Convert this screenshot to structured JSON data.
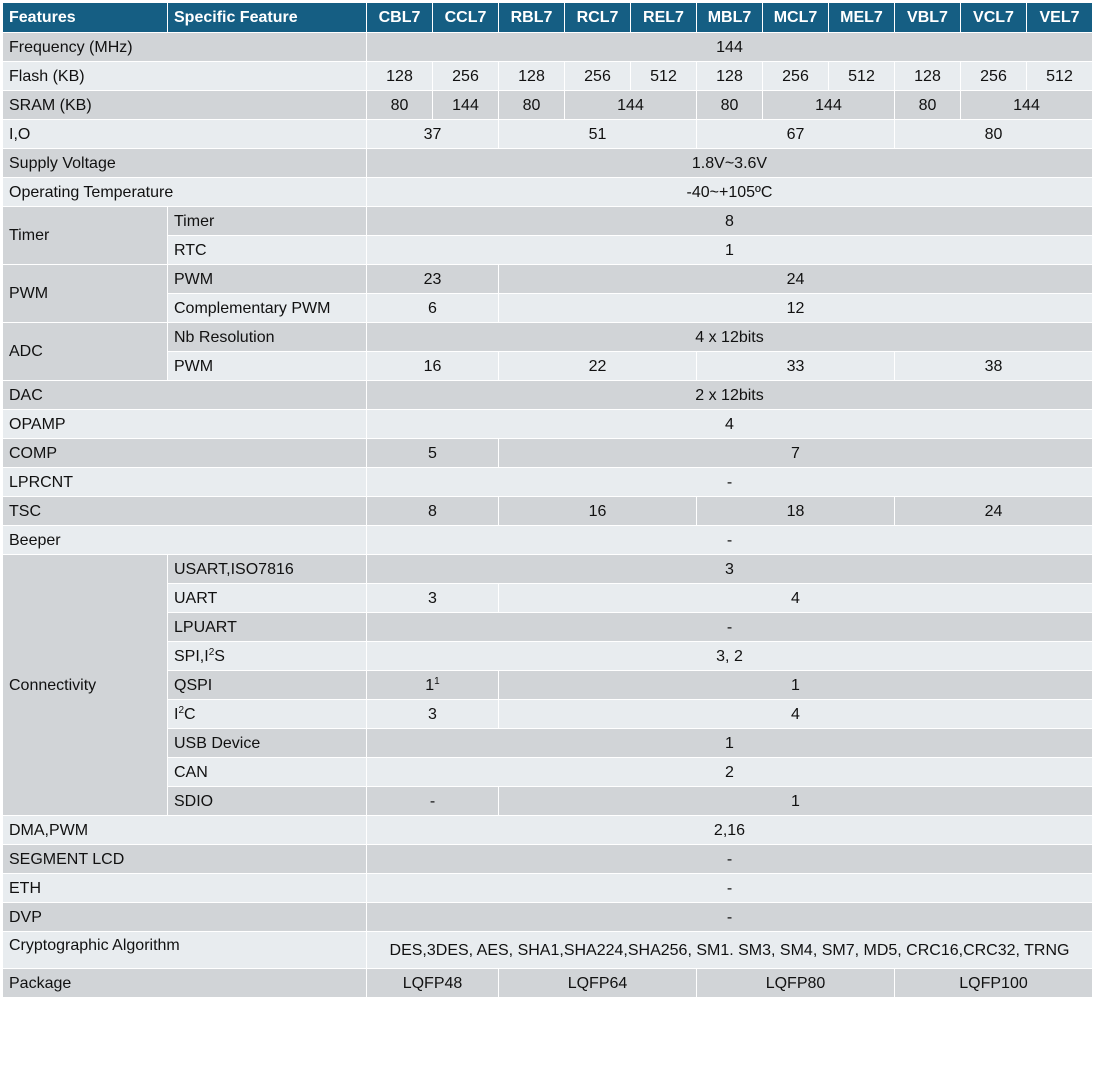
{
  "header": {
    "features": "Features",
    "specific": "Specific Feature",
    "models": [
      "CBL7",
      "CCL7",
      "RBL7",
      "RCL7",
      "REL7",
      "MBL7",
      "MCL7",
      "MEL7",
      "VBL7",
      "VCL7",
      "VEL7"
    ]
  },
  "rows": {
    "frequency": {
      "label": "Frequency (MHz)",
      "value": "144"
    },
    "flash": {
      "label": "Flash (KB)",
      "values": [
        "128",
        "256",
        "128",
        "256",
        "512",
        "128",
        "256",
        "512",
        "128",
        "256",
        "512"
      ]
    },
    "sram": {
      "label": "SRAM (KB)",
      "values": [
        "80",
        "144",
        "80",
        "144",
        "80",
        "144",
        "80",
        "144"
      ]
    },
    "io": {
      "label": "I,O",
      "values": [
        "37",
        "51",
        "67",
        "80"
      ]
    },
    "supply": {
      "label": "Supply Voltage",
      "value": "1.8V~3.6V"
    },
    "temp": {
      "label": "Operating Temperature",
      "value": "-40~+105ºC"
    },
    "timer": {
      "group": "Timer",
      "timer": {
        "label": "Timer",
        "value": "8"
      },
      "rtc": {
        "label": "RTC",
        "value": "1"
      }
    },
    "pwm": {
      "group": "PWM",
      "pwm": {
        "label": "PWM",
        "values": [
          "23",
          "24"
        ]
      },
      "comp_pwm": {
        "label": "Complementary PWM",
        "values": [
          "6",
          "12"
        ]
      }
    },
    "adc": {
      "group": "ADC",
      "nb": {
        "label": "Nb Resolution",
        "value": "4 x 12bits"
      },
      "pwm": {
        "label": "PWM",
        "values": [
          "16",
          "22",
          "33",
          "38"
        ]
      }
    },
    "dac": {
      "label": "DAC",
      "value": "2 x 12bits"
    },
    "opamp": {
      "label": "OPAMP",
      "value": "4"
    },
    "comp": {
      "label": "COMP",
      "values": [
        "5",
        "7"
      ]
    },
    "lprcnt": {
      "label": "LPRCNT",
      "value": "-"
    },
    "tsc": {
      "label": "TSC",
      "values": [
        "8",
        "16",
        "18",
        "24"
      ]
    },
    "beeper": {
      "label": "Beeper",
      "value": "-"
    },
    "connectivity": {
      "group": "Connectivity",
      "usart": {
        "label": "USART,ISO7816",
        "value": "3"
      },
      "uart": {
        "label": "UART",
        "values": [
          "3",
          "4"
        ]
      },
      "lpuart": {
        "label": "LPUART",
        "value": "-"
      },
      "spi": {
        "label_main": "SPI,I",
        "label_sup": "2",
        "label_tail": "S",
        "value": "3, 2"
      },
      "qspi": {
        "label": "QSPI",
        "value_main": "1",
        "value_sup": "1",
        "value2": "1"
      },
      "i2c": {
        "label_main": "I",
        "label_sup": "2",
        "label_tail": "C",
        "values": [
          "3",
          "4"
        ]
      },
      "usb": {
        "label": "USB Device",
        "value": "1"
      },
      "can": {
        "label": "CAN",
        "value": "2"
      },
      "sdio": {
        "label": "SDIO",
        "values": [
          "-",
          "1"
        ]
      }
    },
    "dma": {
      "label": "DMA,PWM",
      "value": "2,16"
    },
    "seglcd": {
      "label": "SEGMENT LCD",
      "value": "-"
    },
    "eth": {
      "label": "ETH",
      "value": "-"
    },
    "dvp": {
      "label": "DVP",
      "value": "-"
    },
    "crypto": {
      "label": "Cryptographic Algorithm",
      "value": "DES,3DES, AES, SHA1,SHA224,SHA256, SM1. SM3, SM4, SM7, MD5, CRC16,CRC32, TRNG"
    },
    "package": {
      "label": "Package",
      "values": [
        "LQFP48",
        "LQFP64",
        "LQFP80",
        "LQFP100"
      ]
    }
  }
}
